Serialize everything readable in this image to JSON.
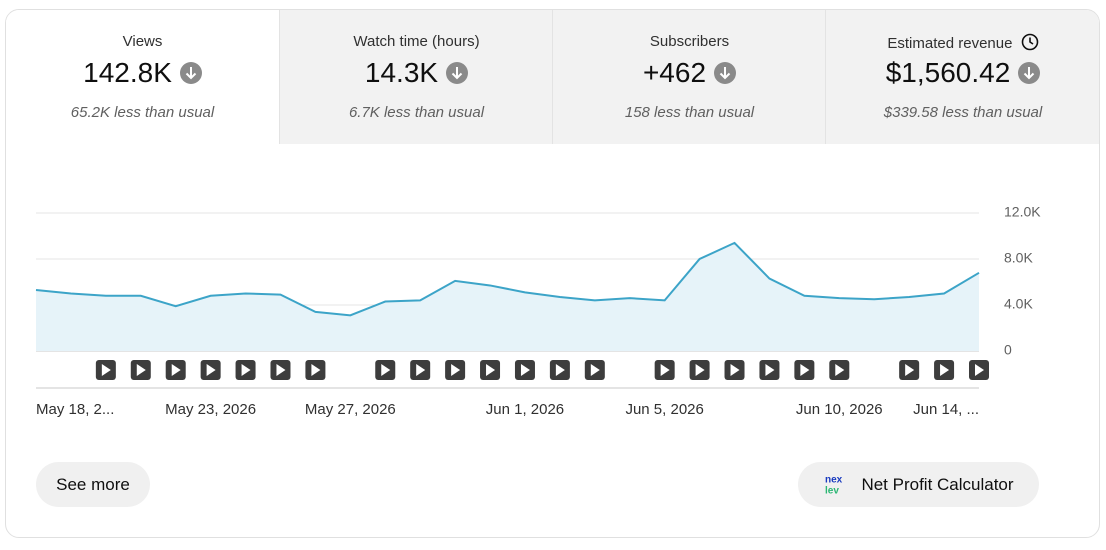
{
  "metrics": [
    {
      "title": "Views",
      "value": "142.8K",
      "delta": "65.2K less than usual"
    },
    {
      "title": "Watch time (hours)",
      "value": "14.3K",
      "delta": "6.7K less than usual"
    },
    {
      "title": "Subscribers",
      "value": "+462",
      "delta": "158 less than usual"
    },
    {
      "title": "Estimated revenue",
      "value": "$1,560.42",
      "delta": "$339.58 less than usual"
    }
  ],
  "chart_data": {
    "type": "area",
    "color": "#3ca4c8",
    "fill": "#e6f3f9",
    "categories": [
      "May 18, 2...",
      null,
      null,
      null,
      null,
      "May 23, 2026",
      null,
      null,
      null,
      "May 27, 2026",
      null,
      null,
      null,
      null,
      "Jun 1, 2026",
      null,
      null,
      null,
      "Jun 5, 2026",
      null,
      null,
      null,
      null,
      "Jun 10, 2026",
      null,
      null,
      null,
      "Jun 14, ..."
    ],
    "values": [
      5300,
      5000,
      4800,
      4800,
      3900,
      4800,
      5000,
      4900,
      3400,
      3100,
      4300,
      4400,
      6100,
      5700,
      5100,
      4700,
      4400,
      4600,
      4400,
      8000,
      9400,
      6300,
      4800,
      4600,
      4500,
      4700,
      5000,
      6800
    ],
    "video_published": [
      false,
      false,
      true,
      true,
      true,
      true,
      true,
      true,
      true,
      false,
      true,
      true,
      true,
      true,
      true,
      true,
      true,
      false,
      true,
      true,
      true,
      true,
      true,
      true,
      false,
      true,
      true,
      true
    ],
    "ylim": [
      0,
      12000
    ],
    "yticks": [
      0,
      {
        "value": 4000,
        "label": "4.0K"
      },
      {
        "value": 8000,
        "label": "8.0K"
      },
      {
        "value": 12000,
        "label": "12.0K"
      }
    ],
    "grid": true
  },
  "buttons": {
    "see_more": "See more",
    "calculator": "Net Profit Calculator"
  }
}
